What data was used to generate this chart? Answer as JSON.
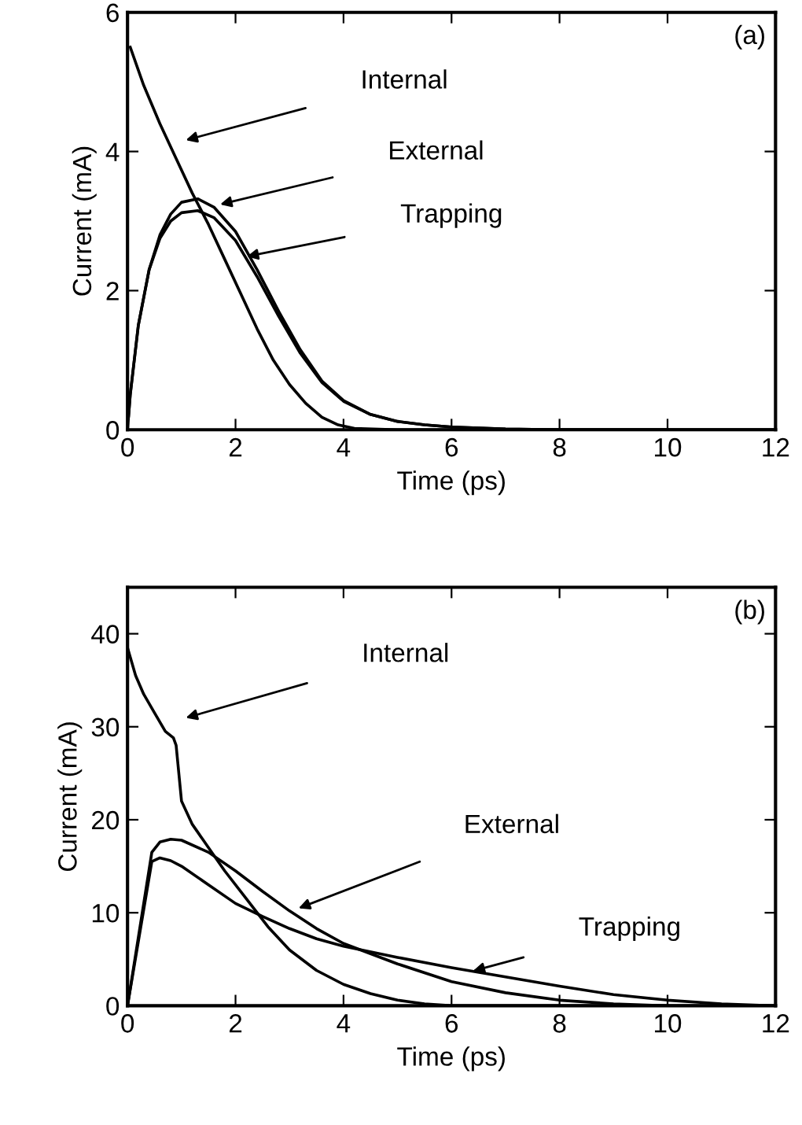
{
  "chart_data": [
    {
      "type": "line",
      "xlabel": "Time (ps)",
      "ylabel": "Current (mA)",
      "xlim": [
        0,
        12
      ],
      "ylim": [
        0,
        6
      ],
      "xticks": [
        0,
        2,
        4,
        6,
        8,
        10,
        12
      ],
      "yticks": [
        0,
        2,
        4,
        6
      ],
      "grid": false,
      "legend": false,
      "line_style": "solid",
      "annotations": [
        "(a)",
        "Internal",
        "External",
        "Trapping"
      ],
      "series": [
        {
          "color": "#000000",
          "x": [
            0.05,
            0.3,
            0.6,
            0.9,
            1.2,
            1.5,
            1.8,
            2.1,
            2.4,
            2.7,
            3.0,
            3.3,
            3.6,
            3.9,
            4.2,
            5,
            6,
            8,
            12
          ],
          "values": [
            5.5,
            4.95,
            4.4,
            3.9,
            3.4,
            2.95,
            2.45,
            1.95,
            1.45,
            1.0,
            0.65,
            0.38,
            0.18,
            0.07,
            0.02,
            0,
            0,
            0,
            0
          ]
        },
        {
          "color": "#000000",
          "x": [
            0,
            0.05,
            0.2,
            0.4,
            0.6,
            0.8,
            1.0,
            1.3,
            1.6,
            2.0,
            2.4,
            2.8,
            3.2,
            3.6,
            4.0,
            4.5,
            5,
            5.5,
            6,
            7,
            8,
            12
          ],
          "values": [
            0,
            0.5,
            1.5,
            2.3,
            2.8,
            3.1,
            3.27,
            3.32,
            3.2,
            2.85,
            2.3,
            1.7,
            1.15,
            0.7,
            0.42,
            0.22,
            0.12,
            0.07,
            0.04,
            0.01,
            0,
            0
          ]
        },
        {
          "color": "#000000",
          "x": [
            0.02,
            0.05,
            0.2,
            0.4,
            0.6,
            0.8,
            1.0,
            1.3,
            1.6,
            2.0,
            2.4,
            2.8,
            3.2,
            3.6,
            4.0,
            4.5,
            5,
            5.5,
            6,
            7,
            8,
            10
          ],
          "values": [
            0.2,
            0.5,
            1.5,
            2.3,
            2.75,
            3.0,
            3.12,
            3.15,
            3.05,
            2.72,
            2.2,
            1.63,
            1.1,
            0.68,
            0.41,
            0.22,
            0.12,
            0.07,
            0.04,
            0.01,
            0,
            0
          ]
        }
      ]
    },
    {
      "type": "line",
      "xlabel": "Time (ps)",
      "ylabel": "Current (mA)",
      "xlim": [
        0,
        12
      ],
      "ylim": [
        0,
        45
      ],
      "xticks": [
        0,
        2,
        4,
        6,
        8,
        10,
        12
      ],
      "yticks": [
        0,
        10,
        20,
        30,
        40
      ],
      "grid": false,
      "legend": false,
      "line_style": "solid",
      "annotations": [
        "(b)",
        "Internal",
        "External",
        "Trapping"
      ],
      "series": [
        {
          "color": "#000000",
          "x": [
            0,
            0.15,
            0.3,
            0.5,
            0.7,
            0.85,
            0.9,
            1.0,
            1.2,
            1.5,
            1.8,
            2.2,
            2.6,
            3.0,
            3.5,
            4.0,
            4.5,
            5.0,
            5.5,
            6,
            8,
            12
          ],
          "values": [
            38.5,
            35.5,
            33.5,
            31.5,
            29.5,
            28.8,
            28,
            22,
            19.5,
            17,
            14.5,
            11.5,
            8.5,
            6,
            3.8,
            2.3,
            1.3,
            0.6,
            0.2,
            0,
            0,
            0
          ]
        },
        {
          "color": "#000000",
          "x": [
            0,
            0.45,
            0.6,
            0.8,
            1.0,
            1.5,
            2.0,
            2.5,
            3.0,
            3.5,
            4,
            5,
            6,
            7,
            8,
            9,
            10
          ],
          "values": [
            0,
            16.5,
            17.6,
            17.9,
            17.8,
            16.5,
            14.5,
            12.3,
            10.2,
            8.3,
            6.7,
            4.5,
            2.6,
            1.4,
            0.6,
            0.2,
            0
          ]
        },
        {
          "color": "#000000",
          "x": [
            0,
            0.45,
            0.6,
            0.8,
            1.0,
            1.5,
            2,
            2.5,
            3,
            3.5,
            4,
            5,
            6,
            7,
            8,
            9,
            10,
            11,
            12
          ],
          "values": [
            0,
            15.5,
            15.9,
            15.6,
            15,
            13,
            11,
            9.6,
            8.3,
            7.2,
            6.4,
            5.2,
            4.1,
            3.1,
            2.1,
            1.2,
            0.6,
            0.2,
            0
          ]
        }
      ]
    }
  ]
}
